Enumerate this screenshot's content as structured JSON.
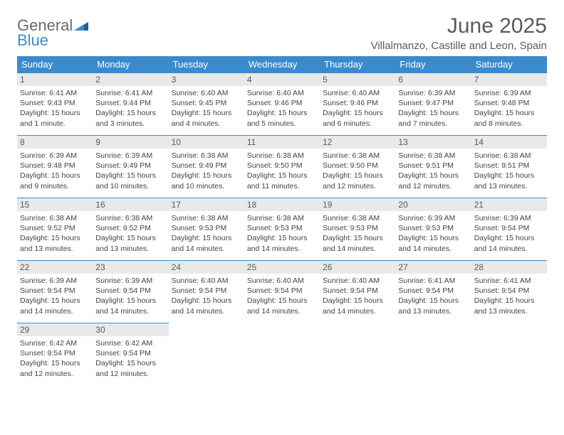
{
  "brand": {
    "word1": "General",
    "word2": "Blue"
  },
  "title": "June 2025",
  "location": "Villalmanzo, Castille and Leon, Spain",
  "colors": {
    "header_bg": "#3b8bcc",
    "header_text": "#ffffff",
    "daynum_bg": "#e9e9e9",
    "text": "#444444",
    "title_text": "#5a5a5a",
    "rule": "#3b8bcc"
  },
  "weekdays": [
    "Sunday",
    "Monday",
    "Tuesday",
    "Wednesday",
    "Thursday",
    "Friday",
    "Saturday"
  ],
  "weeks": [
    [
      {
        "n": "1",
        "sr": "6:41 AM",
        "ss": "9:43 PM",
        "dl": "15 hours and 1 minute."
      },
      {
        "n": "2",
        "sr": "6:41 AM",
        "ss": "9:44 PM",
        "dl": "15 hours and 3 minutes."
      },
      {
        "n": "3",
        "sr": "6:40 AM",
        "ss": "9:45 PM",
        "dl": "15 hours and 4 minutes."
      },
      {
        "n": "4",
        "sr": "6:40 AM",
        "ss": "9:46 PM",
        "dl": "15 hours and 5 minutes."
      },
      {
        "n": "5",
        "sr": "6:40 AM",
        "ss": "9:46 PM",
        "dl": "15 hours and 6 minutes."
      },
      {
        "n": "6",
        "sr": "6:39 AM",
        "ss": "9:47 PM",
        "dl": "15 hours and 7 minutes."
      },
      {
        "n": "7",
        "sr": "6:39 AM",
        "ss": "9:48 PM",
        "dl": "15 hours and 8 minutes."
      }
    ],
    [
      {
        "n": "8",
        "sr": "6:39 AM",
        "ss": "9:48 PM",
        "dl": "15 hours and 9 minutes."
      },
      {
        "n": "9",
        "sr": "6:39 AM",
        "ss": "9:49 PM",
        "dl": "15 hours and 10 minutes."
      },
      {
        "n": "10",
        "sr": "6:38 AM",
        "ss": "9:49 PM",
        "dl": "15 hours and 10 minutes."
      },
      {
        "n": "11",
        "sr": "6:38 AM",
        "ss": "9:50 PM",
        "dl": "15 hours and 11 minutes."
      },
      {
        "n": "12",
        "sr": "6:38 AM",
        "ss": "9:50 PM",
        "dl": "15 hours and 12 minutes."
      },
      {
        "n": "13",
        "sr": "6:38 AM",
        "ss": "9:51 PM",
        "dl": "15 hours and 12 minutes."
      },
      {
        "n": "14",
        "sr": "6:38 AM",
        "ss": "9:51 PM",
        "dl": "15 hours and 13 minutes."
      }
    ],
    [
      {
        "n": "15",
        "sr": "6:38 AM",
        "ss": "9:52 PM",
        "dl": "15 hours and 13 minutes."
      },
      {
        "n": "16",
        "sr": "6:38 AM",
        "ss": "9:52 PM",
        "dl": "15 hours and 13 minutes."
      },
      {
        "n": "17",
        "sr": "6:38 AM",
        "ss": "9:53 PM",
        "dl": "15 hours and 14 minutes."
      },
      {
        "n": "18",
        "sr": "6:38 AM",
        "ss": "9:53 PM",
        "dl": "15 hours and 14 minutes."
      },
      {
        "n": "19",
        "sr": "6:38 AM",
        "ss": "9:53 PM",
        "dl": "15 hours and 14 minutes."
      },
      {
        "n": "20",
        "sr": "6:39 AM",
        "ss": "9:53 PM",
        "dl": "15 hours and 14 minutes."
      },
      {
        "n": "21",
        "sr": "6:39 AM",
        "ss": "9:54 PM",
        "dl": "15 hours and 14 minutes."
      }
    ],
    [
      {
        "n": "22",
        "sr": "6:39 AM",
        "ss": "9:54 PM",
        "dl": "15 hours and 14 minutes."
      },
      {
        "n": "23",
        "sr": "6:39 AM",
        "ss": "9:54 PM",
        "dl": "15 hours and 14 minutes."
      },
      {
        "n": "24",
        "sr": "6:40 AM",
        "ss": "9:54 PM",
        "dl": "15 hours and 14 minutes."
      },
      {
        "n": "25",
        "sr": "6:40 AM",
        "ss": "9:54 PM",
        "dl": "15 hours and 14 minutes."
      },
      {
        "n": "26",
        "sr": "6:40 AM",
        "ss": "9:54 PM",
        "dl": "15 hours and 14 minutes."
      },
      {
        "n": "27",
        "sr": "6:41 AM",
        "ss": "9:54 PM",
        "dl": "15 hours and 13 minutes."
      },
      {
        "n": "28",
        "sr": "6:41 AM",
        "ss": "9:54 PM",
        "dl": "15 hours and 13 minutes."
      }
    ],
    [
      {
        "n": "29",
        "sr": "6:42 AM",
        "ss": "9:54 PM",
        "dl": "15 hours and 12 minutes."
      },
      {
        "n": "30",
        "sr": "6:42 AM",
        "ss": "9:54 PM",
        "dl": "15 hours and 12 minutes."
      },
      null,
      null,
      null,
      null,
      null
    ]
  ],
  "labels": {
    "sunrise": "Sunrise:",
    "sunset": "Sunset:",
    "daylight": "Daylight:"
  }
}
